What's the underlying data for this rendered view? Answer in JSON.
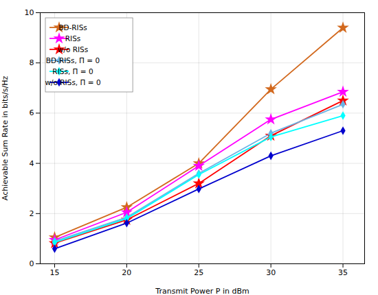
{
  "chart_data": {
    "type": "line",
    "x": [
      15,
      20,
      25,
      30,
      35
    ],
    "series": [
      {
        "name": "BD-RISs",
        "color": "#D2691E",
        "marker": "star",
        "values": [
          1.05,
          2.25,
          4.0,
          6.95,
          9.4
        ]
      },
      {
        "name": "RISs",
        "color": "#FF00FF",
        "marker": "star",
        "values": [
          0.95,
          2.05,
          3.9,
          5.75,
          6.85
        ]
      },
      {
        "name": "w/o RISs",
        "color": "#FF0000",
        "marker": "star",
        "values": [
          0.82,
          1.75,
          3.2,
          5.1,
          6.5
        ]
      },
      {
        "name": "BD-RISs, Π = 0",
        "color": "#6CB4E4",
        "marker": "diamond",
        "values": [
          0.9,
          1.85,
          3.6,
          5.2,
          6.35
        ]
      },
      {
        "name": "RISs, Π = 0",
        "color": "#00FFFF",
        "marker": "diamond",
        "values": [
          0.85,
          1.8,
          3.55,
          5.05,
          5.9
        ]
      },
      {
        "name": "w/o RISs, Π = 0",
        "color": "#0000CD",
        "marker": "diamond",
        "values": [
          0.6,
          1.62,
          2.98,
          4.3,
          5.3
        ]
      }
    ],
    "xlabel": "Transmit Power P in dBm",
    "ylabel": "Achievable Sum Rate in bits/s/Hz",
    "xlim": [
      14,
      36.5
    ],
    "ylim": [
      0,
      10
    ],
    "xticks": [
      15,
      20,
      25,
      30,
      35
    ],
    "yticks": [
      0,
      2,
      4,
      6,
      8,
      10
    ],
    "grid": true,
    "legend": "upper left"
  }
}
